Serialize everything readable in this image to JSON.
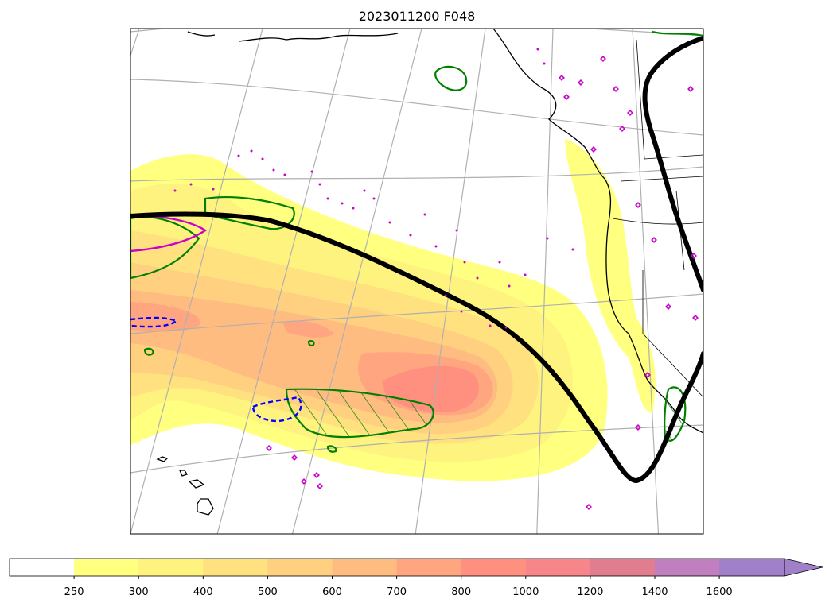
{
  "title": "2023011200 F048",
  "map": {
    "land_outline_color": "#000000",
    "graticule_color": "#b0b0b0",
    "jet_axis_color": "#000000",
    "green_contour_color": "#008000",
    "magenta_contour_color": "#cc00cc",
    "blue_dashed_contour_color": "#0000ff",
    "marker_color": "#cc00cc"
  },
  "colorbar": {
    "levels": [
      "250",
      "300",
      "400",
      "500",
      "600",
      "700",
      "800",
      "1000",
      "1200",
      "1400",
      "1600"
    ],
    "colors": [
      "#ffffff",
      "#ffff80",
      "#fff380",
      "#ffe180",
      "#ffd080",
      "#ffbc80",
      "#ffa680",
      "#ff9080",
      "#f7868a",
      "#e07e8f",
      "#c07fbe",
      "#a080c8"
    ],
    "extend": "max"
  }
}
